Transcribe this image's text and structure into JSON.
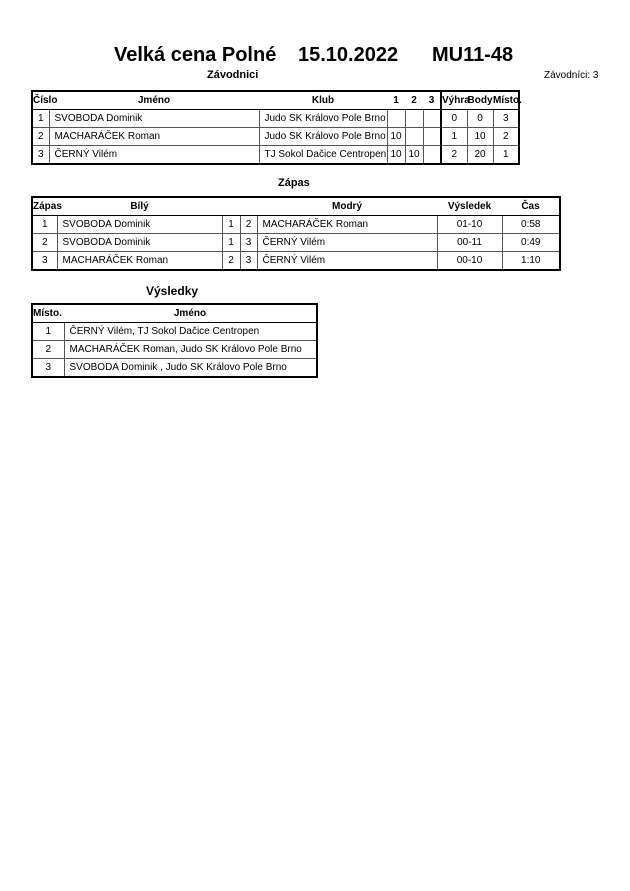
{
  "header": {
    "event": "Velká cena Polné",
    "date": "15.10.2022",
    "category": "MU11-48"
  },
  "competitors": {
    "title": "Závodnici",
    "count_label": "Závodníci: 3",
    "columns": [
      "Číslo",
      "Jméno",
      "Klub",
      "1",
      "2",
      "3",
      "Výhra",
      "Body",
      "Místo."
    ],
    "rows": [
      [
        "1",
        "SVOBODA Dominik",
        "Judo SK Královo Pole Brno",
        "",
        "",
        "",
        "0",
        "0",
        "3"
      ],
      [
        "2",
        "MACHARÁČEK Roman",
        "Judo SK Královo Pole Brno",
        "10",
        "",
        "",
        "1",
        "10",
        "2"
      ],
      [
        "3",
        "ČERNÝ Vilém",
        "TJ Sokol Dačice Centropen",
        "10",
        "10",
        "",
        "2",
        "20",
        "1"
      ]
    ]
  },
  "matches": {
    "title": "Zápas",
    "columns": [
      "Zápas",
      "Bílý",
      "Modrý",
      "Výsledek",
      "Čas"
    ],
    "rows": [
      [
        "1",
        "SVOBODA Dominik",
        "1",
        "2",
        "MACHARÁČEK Roman",
        "01-10",
        "0:58"
      ],
      [
        "2",
        "SVOBODA Dominik",
        "1",
        "3",
        "ČERNÝ Vilém",
        "00-11",
        "0:49"
      ],
      [
        "3",
        "MACHARÁČEK Roman",
        "2",
        "3",
        "ČERNÝ Vilém",
        "00-10",
        "1:10"
      ]
    ]
  },
  "results": {
    "title": "Výsledky",
    "columns": [
      "Místo.",
      "Jméno"
    ],
    "rows": [
      [
        "1",
        "ČERNÝ Vilém, TJ Sokol Dačice Centropen"
      ],
      [
        "2",
        "MACHARÁČEK Roman, Judo SK Královo Pole Brno"
      ],
      [
        "3",
        "SVOBODA Dominik , Judo SK Královo Pole Brno"
      ]
    ]
  }
}
